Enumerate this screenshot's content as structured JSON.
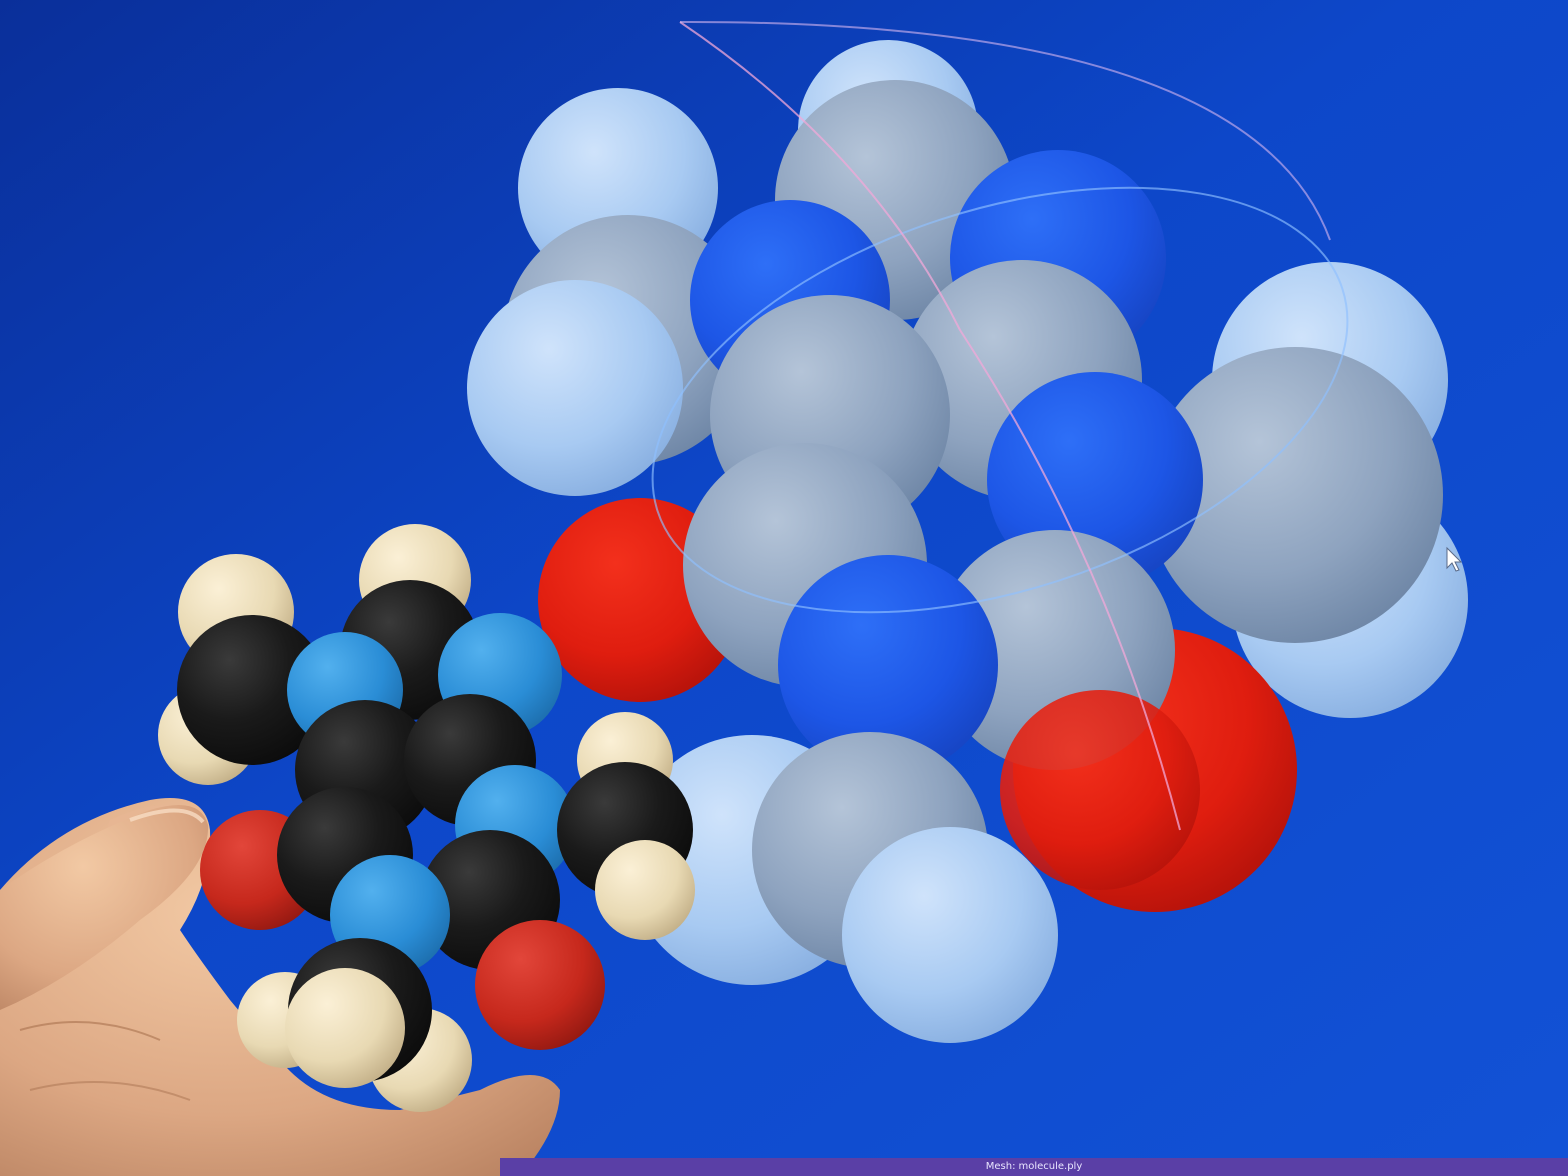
{
  "viewer": {
    "status_label": "Mesh:",
    "status_value": "molecule.ply"
  },
  "scene": {
    "background_color": "#0b3fb8",
    "atom_colors": {
      "carbon_screen": "#8fa6c4",
      "nitrogen_screen": "#1e5ef0",
      "oxygen_screen": "#e21e10",
      "hydrogen_screen": "#a9cbf2",
      "carbon_print": "#161616",
      "nitrogen_print": "#2b8fd6",
      "oxygen_print": "#c9281c",
      "hydrogen_print": "#ebdcb8"
    },
    "icons": [
      "mouse-cursor-icon",
      "hand",
      "trackball-gizmo"
    ]
  }
}
